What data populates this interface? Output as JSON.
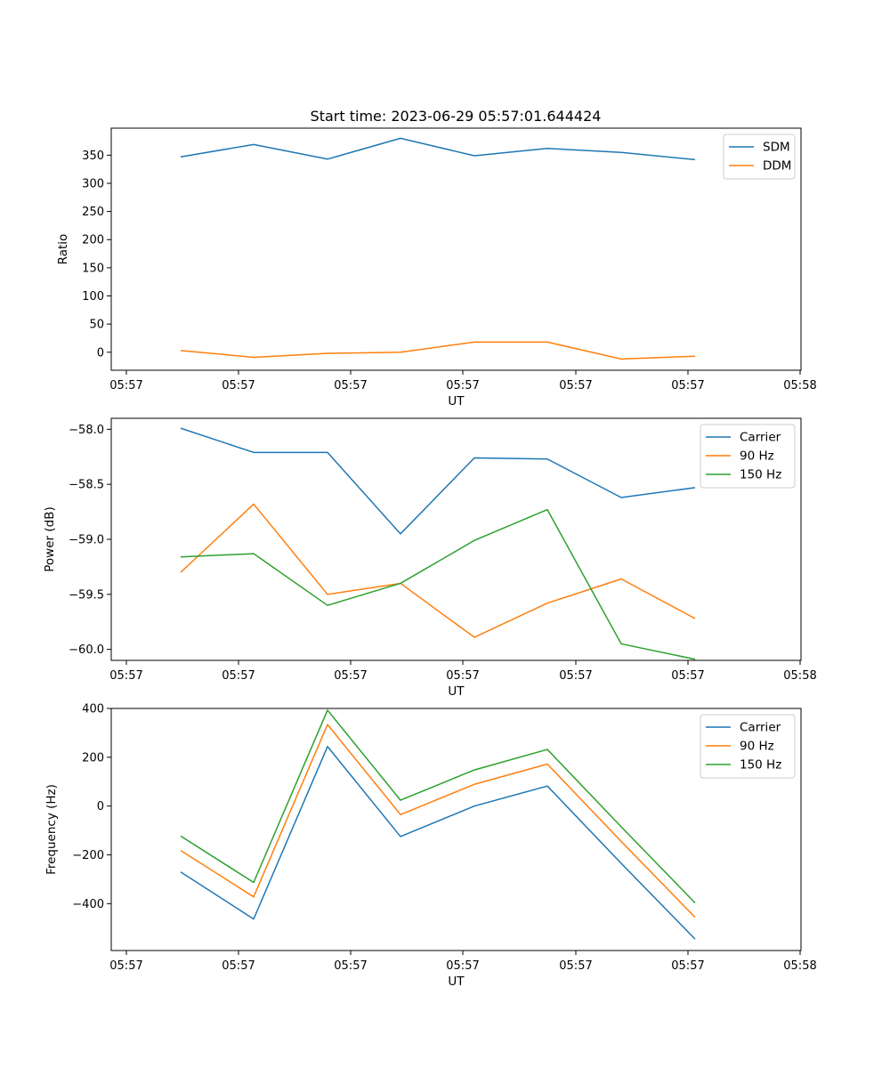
{
  "title": "Start time: 2023-06-29 05:57:01.644424",
  "chart_data": [
    {
      "type": "line",
      "xlabel": "UT",
      "ylabel": "Ratio",
      "x_tick_labels": [
        "05:57",
        "05:57",
        "05:57",
        "05:57",
        "05:57",
        "05:57",
        "05:58"
      ],
      "y_ticks": [
        0,
        50,
        100,
        150,
        200,
        250,
        300,
        350
      ],
      "y_tick_labels": [
        "0",
        "50",
        "100",
        "150",
        "200",
        "250",
        "300",
        "350"
      ],
      "ylim": [
        -32,
        398
      ],
      "legend_position": "upper-right",
      "series": [
        {
          "name": "SDM",
          "color": "#1f77b4",
          "values": [
            347,
            369,
            343,
            380,
            349,
            362,
            355,
            342
          ]
        },
        {
          "name": "DDM",
          "color": "#ff7f0e",
          "values": [
            3,
            -9,
            -2,
            0,
            18,
            18,
            -12,
            -7
          ]
        }
      ]
    },
    {
      "type": "line",
      "xlabel": "UT",
      "ylabel": "Power (dB)",
      "x_tick_labels": [
        "05:57",
        "05:57",
        "05:57",
        "05:57",
        "05:57",
        "05:57",
        "05:58"
      ],
      "y_ticks": [
        -60.0,
        -59.5,
        -59.0,
        -58.5,
        -58.0
      ],
      "y_tick_labels": [
        "−60.0",
        "−59.5",
        "−59.0",
        "−58.5",
        "−58.0"
      ],
      "ylim": [
        -60.1,
        -57.9
      ],
      "legend_position": "upper-right",
      "series": [
        {
          "name": "Carrier",
          "color": "#1f77b4",
          "values": [
            -57.99,
            -58.21,
            -58.21,
            -58.95,
            -58.26,
            -58.27,
            -58.62,
            -58.53
          ]
        },
        {
          "name": "90 Hz",
          "color": "#ff7f0e",
          "values": [
            -59.3,
            -58.68,
            -59.5,
            -59.4,
            -59.89,
            -59.58,
            -59.36,
            -59.72
          ]
        },
        {
          "name": "150 Hz",
          "color": "#2ca02c",
          "values": [
            -59.16,
            -59.13,
            -59.6,
            -59.4,
            -59.01,
            -58.73,
            -59.95,
            -60.09
          ]
        }
      ]
    },
    {
      "type": "line",
      "xlabel": "UT",
      "ylabel": "Frequency (Hz)",
      "x_tick_labels": [
        "05:57",
        "05:57",
        "05:57",
        "05:57",
        "05:57",
        "05:57",
        "05:58"
      ],
      "y_ticks": [
        -400,
        -200,
        0,
        200,
        400
      ],
      "y_tick_labels": [
        "−400",
        "−200",
        "0",
        "200",
        "400"
      ],
      "ylim": [
        -592,
        400
      ],
      "legend_position": "upper-right",
      "series": [
        {
          "name": "Carrier",
          "color": "#1f77b4",
          "values": [
            -270,
            -463,
            244,
            -125,
            0,
            82,
            -235,
            -545
          ]
        },
        {
          "name": "90 Hz",
          "color": "#ff7f0e",
          "values": [
            -182,
            -372,
            334,
            -35,
            89,
            172,
            -145,
            -456
          ]
        },
        {
          "name": "150 Hz",
          "color": "#2ca02c",
          "values": [
            -123,
            -313,
            393,
            24,
            148,
            232,
            -85,
            -397
          ]
        }
      ]
    }
  ]
}
